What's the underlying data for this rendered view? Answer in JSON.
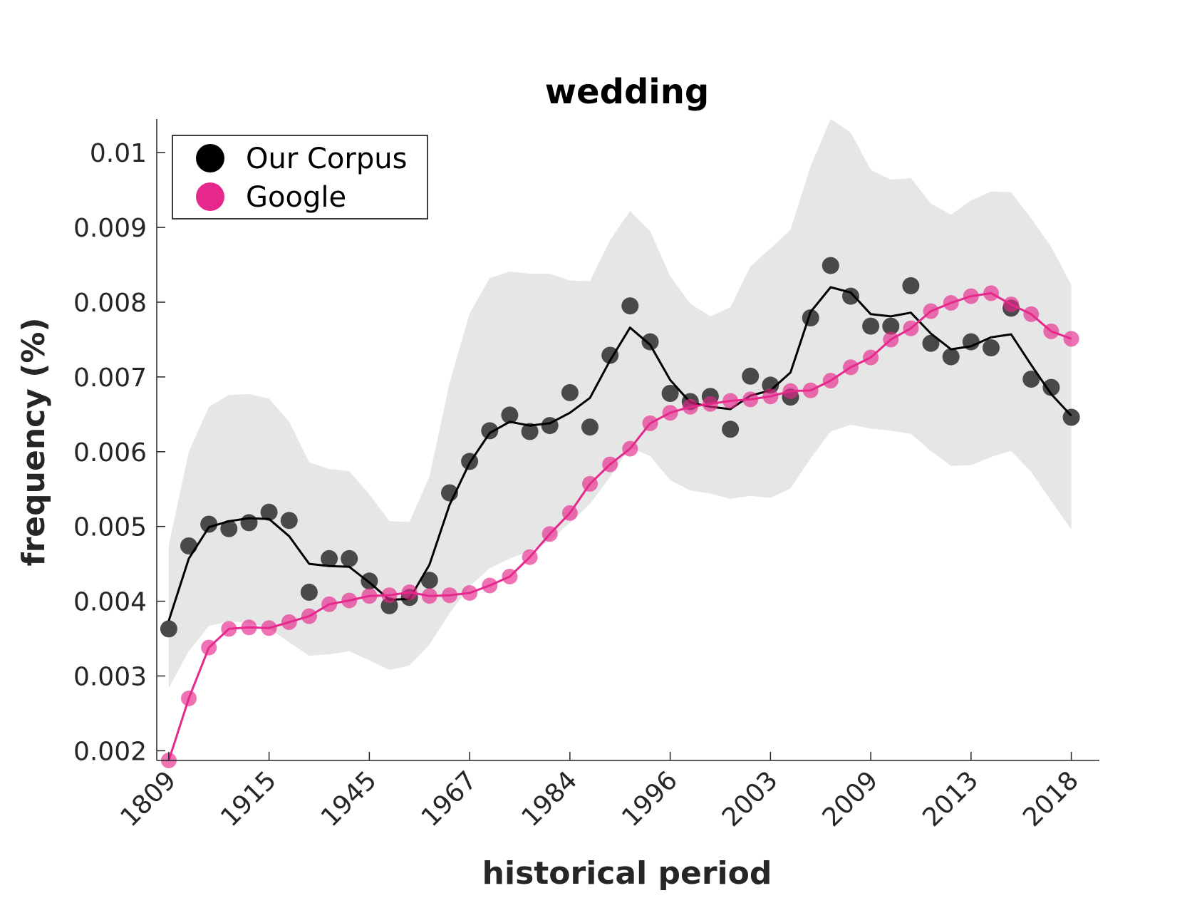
{
  "chart_data": {
    "type": "line",
    "title": "wedding",
    "xlabel": "historical period",
    "ylabel": "frequency (%)",
    "x_tick_labels": [
      "1809",
      "1915",
      "1945",
      "1967",
      "1984",
      "1996",
      "2003",
      "2009",
      "2013",
      "2018"
    ],
    "y_tick_labels": [
      "0.002",
      "0.003",
      "0.004",
      "0.005",
      "0.006",
      "0.007",
      "0.008",
      "0.009",
      "0.01"
    ],
    "y_ticks": [
      0.002,
      0.003,
      0.004,
      0.005,
      0.006,
      0.007,
      0.008,
      0.009,
      0.01
    ],
    "ylim": [
      0.00187,
      0.01045
    ],
    "xlim": [
      0.4,
      47.4
    ],
    "x_ticks": [
      1,
      6,
      11,
      16,
      21,
      26,
      31,
      36,
      41,
      46
    ],
    "grid": false,
    "legend_position": "top-left",
    "colors": {
      "corpus": "#000000",
      "corpus_points": "#404040",
      "google": "#e6288c",
      "band": "#e6e6e6"
    },
    "series": [
      {
        "name": "Our Corpus",
        "x": [
          1,
          2,
          3,
          4,
          5,
          6,
          7,
          8,
          9,
          10,
          11,
          12,
          13,
          14,
          15,
          16,
          17,
          18,
          19,
          20,
          21,
          22,
          23,
          24,
          25,
          26,
          27,
          28,
          29,
          30,
          31,
          32,
          33,
          34,
          35,
          36,
          37,
          38,
          39,
          40,
          41,
          42,
          43,
          44,
          45,
          46
        ],
        "points": [
          0.00363,
          0.00474,
          0.00503,
          0.00497,
          0.00505,
          0.00519,
          0.00508,
          0.00412,
          0.00457,
          0.00457,
          0.00427,
          0.00394,
          0.00405,
          0.00428,
          0.00545,
          0.00587,
          0.00628,
          0.00649,
          0.00627,
          0.00635,
          0.00679,
          0.00633,
          0.00729,
          0.00795,
          0.00747,
          0.00678,
          0.00667,
          0.00674,
          0.0063,
          0.00701,
          0.00689,
          0.00673,
          0.00779,
          0.00849,
          0.00808,
          0.00768,
          0.00768,
          0.00822,
          0.00745,
          0.00727,
          0.00747,
          0.00739,
          0.00792,
          0.00697,
          0.00686,
          0.00646
        ],
        "smoothed": [
          0.00374,
          0.00457,
          0.00499,
          0.00507,
          0.00511,
          0.0051,
          0.00487,
          0.0045,
          0.00447,
          0.00446,
          0.00425,
          0.00402,
          0.00403,
          0.00449,
          0.00529,
          0.00585,
          0.00625,
          0.0064,
          0.00635,
          0.00638,
          0.00652,
          0.00672,
          0.00722,
          0.00766,
          0.00743,
          0.00696,
          0.00666,
          0.0066,
          0.00657,
          0.00675,
          0.00682,
          0.00706,
          0.00787,
          0.0082,
          0.00813,
          0.00784,
          0.00781,
          0.00786,
          0.00758,
          0.00737,
          0.00741,
          0.00753,
          0.00757,
          0.00716,
          0.00677,
          0.00648
        ],
        "band_upper": [
          0.00475,
          0.006,
          0.0066,
          0.00676,
          0.00677,
          0.00671,
          0.0064,
          0.00586,
          0.00577,
          0.00574,
          0.00543,
          0.00507,
          0.00506,
          0.00567,
          0.00692,
          0.00785,
          0.00832,
          0.00841,
          0.00838,
          0.00838,
          0.00829,
          0.00828,
          0.00883,
          0.00922,
          0.00895,
          0.00835,
          0.00798,
          0.00781,
          0.00793,
          0.00848,
          0.00872,
          0.00897,
          0.00982,
          0.01045,
          0.01027,
          0.00977,
          0.00964,
          0.00966,
          0.00932,
          0.00917,
          0.00936,
          0.00948,
          0.00947,
          0.00912,
          0.00874,
          0.00823
        ],
        "band_lower": [
          0.00284,
          0.00333,
          0.00367,
          0.00373,
          0.00371,
          0.00364,
          0.00345,
          0.00327,
          0.00329,
          0.00333,
          0.00321,
          0.00308,
          0.00314,
          0.00342,
          0.00384,
          0.0042,
          0.00444,
          0.00457,
          0.00467,
          0.00481,
          0.00505,
          0.0053,
          0.00566,
          0.00606,
          0.00594,
          0.00562,
          0.00548,
          0.00544,
          0.00537,
          0.00541,
          0.00538,
          0.00551,
          0.00591,
          0.00627,
          0.00636,
          0.00631,
          0.00628,
          0.00624,
          0.00601,
          0.00581,
          0.00582,
          0.00593,
          0.00601,
          0.00573,
          0.00534,
          0.00496
        ]
      },
      {
        "name": "Google",
        "x": [
          1,
          2,
          3,
          4,
          5,
          6,
          7,
          8,
          9,
          10,
          11,
          12,
          13,
          14,
          15,
          16,
          17,
          18,
          19,
          20,
          21,
          22,
          23,
          24,
          25,
          26,
          27,
          28,
          29,
          30,
          31,
          32,
          33,
          34,
          35,
          36,
          37,
          38,
          39,
          40,
          41,
          42,
          43,
          44,
          45,
          46
        ],
        "values": [
          0.00187,
          0.0027,
          0.00338,
          0.00363,
          0.00365,
          0.00364,
          0.00372,
          0.0038,
          0.00396,
          0.00401,
          0.00407,
          0.00408,
          0.00412,
          0.00407,
          0.00408,
          0.00411,
          0.00421,
          0.00433,
          0.00459,
          0.0049,
          0.00518,
          0.00557,
          0.00583,
          0.00604,
          0.00638,
          0.00652,
          0.0066,
          0.00664,
          0.00668,
          0.0067,
          0.00674,
          0.00681,
          0.00682,
          0.00695,
          0.00713,
          0.00726,
          0.0075,
          0.00765,
          0.00788,
          0.00799,
          0.00808,
          0.00812,
          0.00797,
          0.00784,
          0.00761,
          0.00751
        ]
      }
    ]
  }
}
